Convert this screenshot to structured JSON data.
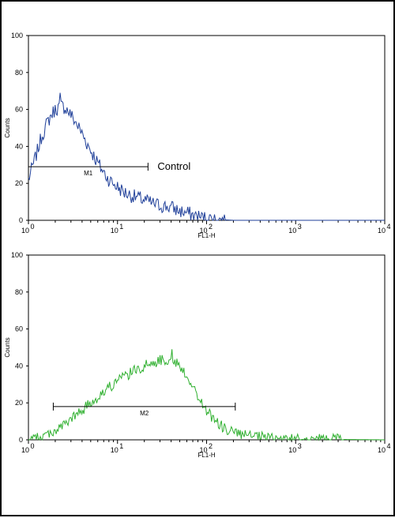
{
  "chart_data": [
    {
      "type": "histogram",
      "xscale": "log",
      "xlim": [
        1,
        10000
      ],
      "ylim": [
        0,
        100
      ],
      "xlabel": "FL1-H",
      "ylabel": "Counts",
      "yticks": [
        "0",
        "20",
        "40",
        "60",
        "80",
        "100"
      ],
      "xticks": [
        {
          "base": "10",
          "exp": "0"
        },
        {
          "base": "10",
          "exp": "1"
        },
        {
          "base": "10",
          "exp": "2"
        },
        {
          "base": "10",
          "exp": "3"
        },
        {
          "base": "10",
          "exp": "4"
        }
      ],
      "color": "#1f3f99",
      "series": [
        {
          "values": [
            [
              1.0,
              22
            ],
            [
              1.2,
              34
            ],
            [
              1.4,
              45
            ],
            [
              1.6,
              52
            ],
            [
              1.8,
              57
            ],
            [
              2.0,
              60
            ],
            [
              2.3,
              62
            ],
            [
              2.6,
              61
            ],
            [
              3.0,
              57
            ],
            [
              3.5,
              52
            ],
            [
              4.0,
              47
            ],
            [
              4.5,
              42
            ],
            [
              5.0,
              38
            ],
            [
              6.0,
              31
            ],
            [
              7.0,
              26
            ],
            [
              8.0,
              22
            ],
            [
              10,
              18
            ],
            [
              12,
              15
            ],
            [
              15,
              13
            ],
            [
              20,
              11
            ],
            [
              25,
              9
            ],
            [
              30,
              8
            ],
            [
              40,
              7
            ],
            [
              50,
              5
            ],
            [
              60,
              4
            ],
            [
              80,
              2
            ],
            [
              100,
              1
            ],
            [
              150,
              0.3
            ],
            [
              200,
              0
            ]
          ],
          "noise": 4,
          "peak_value": 69
        }
      ],
      "marker": {
        "label": "M1",
        "start": 1.0,
        "end": 22,
        "level": 29
      },
      "annotation": "Control"
    },
    {
      "type": "histogram",
      "xscale": "log",
      "xlim": [
        1,
        10000
      ],
      "ylim": [
        0,
        100
      ],
      "xlabel": "FL1-H",
      "ylabel": "Counts",
      "yticks": [
        "0",
        "20",
        "40",
        "60",
        "80",
        "100"
      ],
      "xticks": [
        {
          "base": "10",
          "exp": "0"
        },
        {
          "base": "10",
          "exp": "1"
        },
        {
          "base": "10",
          "exp": "2"
        },
        {
          "base": "10",
          "exp": "3"
        },
        {
          "base": "10",
          "exp": "4"
        }
      ],
      "color": "#2fb02f",
      "series": [
        {
          "values": [
            [
              1.0,
              0
            ],
            [
              1.3,
              1
            ],
            [
              1.6,
              3
            ],
            [
              2.0,
              5
            ],
            [
              2.5,
              8
            ],
            [
              3.0,
              11
            ],
            [
              4.0,
              16
            ],
            [
              5.0,
              20
            ],
            [
              7.0,
              26
            ],
            [
              10,
              32
            ],
            [
              15,
              37
            ],
            [
              20,
              40
            ],
            [
              30,
              43
            ],
            [
              40,
              44
            ],
            [
              50,
              40
            ],
            [
              60,
              35
            ],
            [
              70,
              29
            ],
            [
              80,
              23
            ],
            [
              100,
              16
            ],
            [
              120,
              11
            ],
            [
              150,
              7
            ],
            [
              200,
              4
            ],
            [
              300,
              2
            ],
            [
              500,
              1
            ],
            [
              1000,
              0.5
            ],
            [
              2000,
              0.3
            ],
            [
              10000,
              0
            ]
          ],
          "noise": 3,
          "peak_value": 49
        }
      ],
      "marker": {
        "label": "M2",
        "start": 1.9,
        "end": 210,
        "level": 18
      }
    }
  ]
}
